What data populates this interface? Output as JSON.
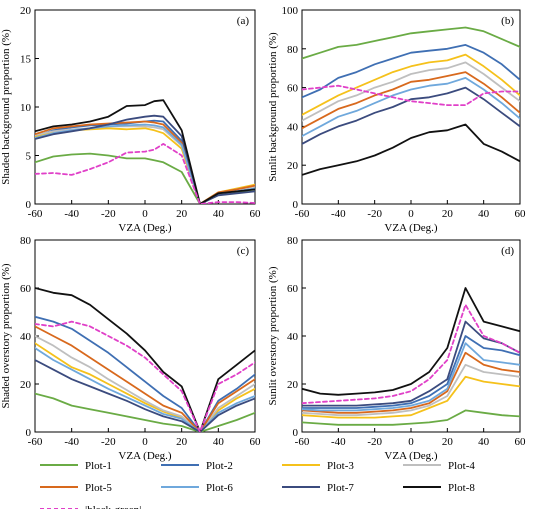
{
  "chart_data": [
    {
      "id": "a",
      "type": "line",
      "panel_label": "(a)",
      "xlabel": "VZA (Deg.)",
      "ylabel": "Shaded background proportion (%)",
      "xlim": [
        -60,
        60
      ],
      "ylim": [
        0,
        20
      ],
      "xticks": [
        -60,
        -40,
        -20,
        0,
        20,
        40,
        60
      ],
      "yticks": [
        0,
        5,
        10,
        15,
        20
      ],
      "x": [
        -60,
        -50,
        -40,
        -30,
        -20,
        -10,
        0,
        5,
        10,
        20,
        30,
        40,
        50,
        60
      ],
      "series": [
        {
          "name": "Plot-1",
          "values": [
            4.3,
            4.9,
            5.1,
            5.2,
            5.0,
            4.7,
            4.7,
            4.5,
            4.3,
            3.3,
            0,
            1.0,
            1.2,
            1.5
          ]
        },
        {
          "name": "Plot-2",
          "values": [
            7.0,
            7.6,
            7.9,
            8.1,
            8.2,
            8.3,
            8.5,
            8.6,
            8.5,
            6.5,
            0,
            1.1,
            1.3,
            1.6
          ]
        },
        {
          "name": "Plot-3",
          "values": [
            6.9,
            7.4,
            7.6,
            7.7,
            7.8,
            7.7,
            7.8,
            7.6,
            7.3,
            5.7,
            0,
            1.2,
            1.6,
            2.0
          ]
        },
        {
          "name": "Plot-4",
          "values": [
            7.1,
            7.5,
            7.7,
            7.8,
            8.0,
            8.0,
            8.0,
            7.9,
            7.7,
            6.0,
            0,
            1.1,
            1.5,
            1.8
          ]
        },
        {
          "name": "Plot-5",
          "values": [
            7.2,
            7.8,
            8.0,
            8.2,
            8.3,
            8.4,
            8.5,
            8.4,
            8.2,
            6.3,
            0,
            1.2,
            1.5,
            1.9
          ]
        },
        {
          "name": "Plot-6",
          "values": [
            6.8,
            7.3,
            7.6,
            7.8,
            8.0,
            8.1,
            8.2,
            8.1,
            7.9,
            6.1,
            0,
            1.0,
            1.3,
            1.6
          ]
        },
        {
          "name": "Plot-7",
          "values": [
            6.7,
            7.2,
            7.5,
            7.8,
            8.2,
            8.7,
            9.0,
            9.1,
            9.0,
            7.0,
            0,
            0.9,
            1.1,
            1.3
          ]
        },
        {
          "name": "Plot-8",
          "values": [
            7.5,
            8.0,
            8.2,
            8.5,
            9.0,
            10.1,
            10.2,
            10.6,
            10.7,
            7.6,
            0,
            1.1,
            1.3,
            1.5
          ]
        },
        {
          "name": "|black-green|",
          "values": [
            3.1,
            3.2,
            3.0,
            3.6,
            4.3,
            5.3,
            5.4,
            5.6,
            6.2,
            5.0,
            0,
            0.2,
            0.2,
            0.1
          ]
        }
      ]
    },
    {
      "id": "b",
      "type": "line",
      "panel_label": "(b)",
      "xlabel": "VZA (Deg.)",
      "ylabel": "Sunlit background proportion (%)",
      "xlim": [
        -60,
        60
      ],
      "ylim": [
        0,
        100
      ],
      "xticks": [
        -60,
        -40,
        -20,
        0,
        20,
        40,
        60
      ],
      "yticks": [
        0,
        20,
        40,
        60,
        80,
        100
      ],
      "x": [
        -60,
        -50,
        -40,
        -30,
        -20,
        -10,
        0,
        10,
        20,
        30,
        40,
        50,
        60
      ],
      "series": [
        {
          "name": "Plot-1",
          "values": [
            75,
            78,
            81,
            82,
            84,
            86,
            88,
            89,
            90,
            91,
            89,
            85,
            81
          ]
        },
        {
          "name": "Plot-2",
          "values": [
            55,
            59,
            65,
            68,
            72,
            75,
            78,
            79,
            80,
            82,
            78,
            72,
            64
          ]
        },
        {
          "name": "Plot-3",
          "values": [
            46,
            51,
            56,
            60,
            64,
            68,
            71,
            73,
            74,
            77,
            71,
            64,
            56
          ]
        },
        {
          "name": "Plot-4",
          "values": [
            43,
            48,
            53,
            56,
            60,
            63,
            67,
            69,
            70,
            73,
            67,
            60,
            53
          ]
        },
        {
          "name": "Plot-5",
          "values": [
            39,
            44,
            49,
            52,
            56,
            59,
            63,
            64,
            66,
            68,
            62,
            55,
            47
          ]
        },
        {
          "name": "Plot-6",
          "values": [
            35,
            40,
            45,
            48,
            52,
            56,
            59,
            61,
            62,
            65,
            59,
            52,
            44
          ]
        },
        {
          "name": "Plot-7",
          "values": [
            31,
            36,
            40,
            43,
            47,
            50,
            54,
            55,
            57,
            60,
            54,
            47,
            40
          ]
        },
        {
          "name": "Plot-8",
          "values": [
            15,
            18,
            20,
            22,
            25,
            29,
            34,
            37,
            38,
            41,
            31,
            27,
            22
          ]
        },
        {
          "name": "|black-green|",
          "values": [
            59,
            60,
            61,
            59,
            57,
            55,
            53,
            52,
            51,
            51,
            57,
            58,
            58
          ]
        }
      ]
    },
    {
      "id": "c",
      "type": "line",
      "panel_label": "(c)",
      "xlabel": "VZA (Deg.)",
      "ylabel": "Shaded overstory proportion (%)",
      "xlim": [
        -60,
        60
      ],
      "ylim": [
        0,
        80
      ],
      "xticks": [
        -60,
        -40,
        -20,
        0,
        20,
        40,
        60
      ],
      "yticks": [
        0,
        20,
        40,
        60,
        80
      ],
      "x": [
        -60,
        -50,
        -40,
        -30,
        -20,
        -10,
        0,
        10,
        20,
        30,
        40,
        50,
        60
      ],
      "series": [
        {
          "name": "Plot-1",
          "values": [
            16,
            14,
            11,
            9.5,
            8,
            6.5,
            5,
            3.5,
            2.5,
            0,
            2.5,
            5,
            8
          ]
        },
        {
          "name": "Plot-2",
          "values": [
            48,
            46,
            43,
            38,
            33,
            27,
            21,
            15,
            10,
            0,
            13,
            18,
            24
          ]
        },
        {
          "name": "Plot-3",
          "values": [
            37,
            32,
            27,
            24,
            20,
            16,
            12,
            8.5,
            6,
            0,
            9,
            14,
            18
          ]
        },
        {
          "name": "Plot-4",
          "values": [
            40,
            36,
            31,
            27,
            22,
            17.5,
            13,
            9,
            6.5,
            0,
            10,
            15,
            20
          ]
        },
        {
          "name": "Plot-5",
          "values": [
            44,
            40,
            36,
            31,
            26,
            21,
            16,
            11,
            8,
            0,
            12,
            17,
            22
          ]
        },
        {
          "name": "Plot-6",
          "values": [
            35,
            30,
            26,
            22,
            18,
            14.5,
            11,
            7.5,
            5.5,
            0,
            8,
            12,
            15
          ]
        },
        {
          "name": "Plot-7",
          "values": [
            30,
            26,
            22,
            19,
            16,
            13,
            9.5,
            6.5,
            4.5,
            0,
            7,
            11,
            14
          ]
        },
        {
          "name": "Plot-8",
          "values": [
            60,
            58,
            57,
            53,
            47,
            41,
            34,
            25,
            19,
            0,
            22,
            28,
            34
          ]
        },
        {
          "name": "|black-green|",
          "values": [
            45,
            44,
            46,
            44,
            40,
            36,
            31,
            24,
            17,
            0,
            20,
            24,
            29
          ]
        }
      ]
    },
    {
      "id": "d",
      "type": "line",
      "panel_label": "(d)",
      "xlabel": "VZA (Deg.)",
      "ylabel": "Sunlit overstory proportion (%)",
      "xlim": [
        -60,
        60
      ],
      "ylim": [
        0,
        80
      ],
      "xticks": [
        -60,
        -40,
        -20,
        0,
        20,
        40,
        60
      ],
      "yticks": [
        0,
        20,
        40,
        60,
        80
      ],
      "x": [
        -60,
        -50,
        -40,
        -30,
        -20,
        -10,
        0,
        10,
        20,
        30,
        40,
        50,
        60
      ],
      "series": [
        {
          "name": "Plot-1",
          "values": [
            4,
            3.5,
            3,
            3,
            3,
            3,
            3.5,
            4,
            5,
            9,
            8,
            7,
            6.5
          ]
        },
        {
          "name": "Plot-2",
          "values": [
            10,
            10,
            10,
            10,
            10.5,
            11,
            12,
            15,
            20,
            40,
            35,
            34,
            32
          ]
        },
        {
          "name": "Plot-3",
          "values": [
            7,
            6.5,
            6,
            6,
            6,
            6.5,
            7,
            10,
            13,
            23,
            21,
            20,
            19
          ]
        },
        {
          "name": "Plot-4",
          "values": [
            8,
            7.5,
            7,
            7,
            7.5,
            8,
            9,
            11,
            15,
            28,
            25,
            24,
            23
          ]
        },
        {
          "name": "Plot-5",
          "values": [
            9,
            8.5,
            8,
            8,
            8.5,
            9,
            10,
            12,
            17,
            33,
            28,
            26,
            25
          ]
        },
        {
          "name": "Plot-6",
          "values": [
            9.5,
            9,
            9,
            9,
            9.5,
            10,
            11,
            13,
            18,
            37,
            30,
            29,
            28
          ]
        },
        {
          "name": "Plot-7",
          "values": [
            11,
            11,
            11,
            11,
            11.5,
            12,
            13,
            17,
            22,
            46,
            39,
            37,
            33
          ]
        },
        {
          "name": "Plot-8",
          "values": [
            18,
            16,
            15.5,
            16,
            16.5,
            17.5,
            20,
            25,
            35,
            60,
            46,
            44,
            42
          ]
        },
        {
          "name": "|black-green|",
          "values": [
            12,
            12.5,
            13,
            13.5,
            14,
            15,
            17,
            22,
            30,
            53,
            40,
            37,
            33
          ]
        }
      ]
    }
  ],
  "legend": [
    {
      "name": "Plot-1",
      "color": "#6aab45",
      "dash": "solid"
    },
    {
      "name": "Plot-2",
      "color": "#3f6fb3",
      "dash": "solid"
    },
    {
      "name": "Plot-3",
      "color": "#f5c11b",
      "dash": "solid"
    },
    {
      "name": "Plot-4",
      "color": "#bfbfbf",
      "dash": "solid"
    },
    {
      "name": "Plot-5",
      "color": "#d8691d",
      "dash": "solid"
    },
    {
      "name": "Plot-6",
      "color": "#6fa8dc",
      "dash": "solid"
    },
    {
      "name": "Plot-7",
      "color": "#3b4b7e",
      "dash": "solid"
    },
    {
      "name": "Plot-8",
      "color": "#111111",
      "dash": "solid"
    },
    {
      "name": "|black-green|",
      "color": "#e040c8",
      "dash": "dashed"
    }
  ]
}
